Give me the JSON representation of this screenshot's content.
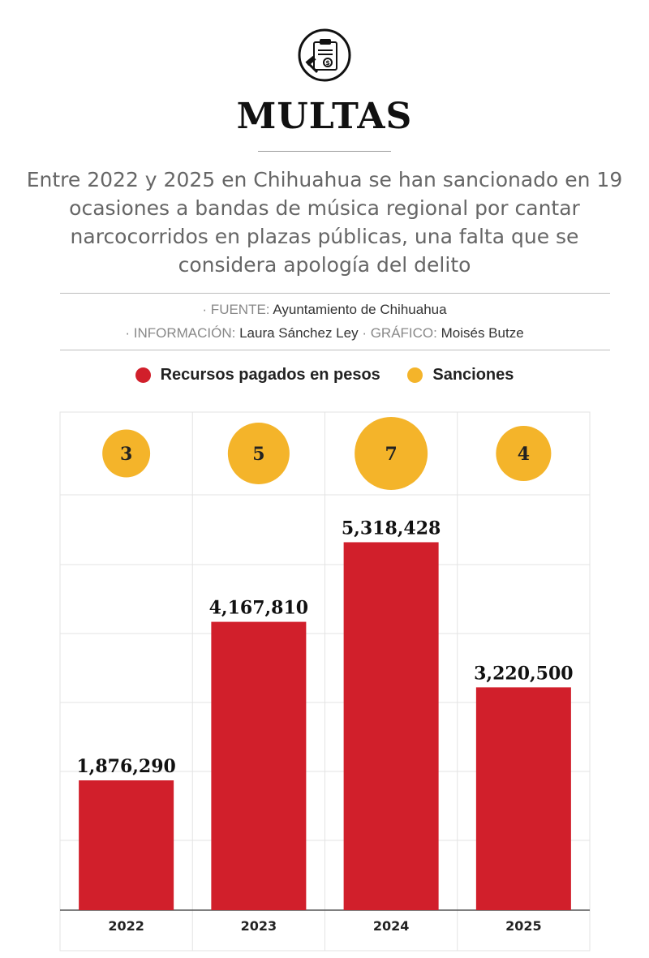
{
  "header": {
    "title": "MULTAS",
    "subtitle": "Entre 2022 y 2025 en Chihuahua se han sancionado en 19 ocasiones a bandas de música regional por cantar narcocorridos en plazas públicas, una falta que se considera apología del delito",
    "icon": "clipboard-gavel-money-icon"
  },
  "credits": {
    "source_label": "· FUENTE:",
    "source_value": "Ayuntamiento de Chihuahua",
    "info_label": "· INFORMACIÓN:",
    "info_value": "Laura Sánchez Ley",
    "graphic_label": "· GRÁFICO:",
    "graphic_value": "Moisés Butze"
  },
  "colors": {
    "bar": "#d11f2b",
    "circle": "#f4b42a",
    "grid": "#e3e3e3"
  },
  "chart_data": {
    "type": "bar",
    "categories": [
      "2022",
      "2023",
      "2024",
      "2025"
    ],
    "series": [
      {
        "name": "Recursos pagados en pesos",
        "values": [
          1876290,
          4167810,
          5318428,
          3220500
        ],
        "labels": [
          "1,876,290",
          "4,167,810",
          "5,318,428",
          "3,220,500"
        ]
      },
      {
        "name": "Sanciones",
        "values": [
          3,
          5,
          7,
          4
        ]
      }
    ],
    "ylim": [
      0,
      7200000
    ],
    "grid": true,
    "legend": "top-center"
  }
}
